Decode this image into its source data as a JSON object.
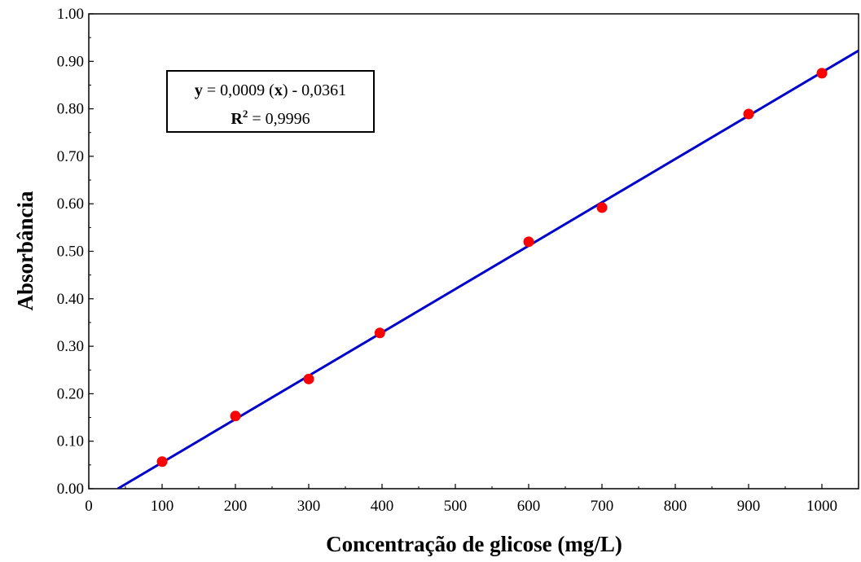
{
  "chart_data": {
    "type": "scatter",
    "xlabel": "Concentração de glicose (mg/L)",
    "ylabel": "Absorbância",
    "xlim": [
      0,
      1050
    ],
    "ylim": [
      0,
      1.0
    ],
    "x_ticks": [
      "0",
      "100",
      "200",
      "300",
      "400",
      "500",
      "600",
      "700",
      "800",
      "900",
      "1000"
    ],
    "y_ticks": [
      "0.00",
      "0.10",
      "0.20",
      "0.30",
      "0.40",
      "0.50",
      "0.60",
      "0.70",
      "0.80",
      "0.90",
      "1.00"
    ],
    "points": [
      {
        "x": 100,
        "y": 0.057
      },
      {
        "x": 200,
        "y": 0.153
      },
      {
        "x": 300,
        "y": 0.231
      },
      {
        "x": 397,
        "y": 0.328
      },
      {
        "x": 600,
        "y": 0.52
      },
      {
        "x": 700,
        "y": 0.592
      },
      {
        "x": 900,
        "y": 0.789
      },
      {
        "x": 1000,
        "y": 0.875
      }
    ],
    "fit": {
      "slope": 0.000913,
      "intercept": -0.0361
    },
    "annotation": {
      "y_symbol": "y",
      "equation_rest": " = 0,0009 (",
      "x_symbol": "x",
      "equation_end": ") - 0,0361",
      "r_symbol": "R",
      "r_power": "2",
      "r_rest": " = 0,9996"
    },
    "colors": {
      "points": "#ff0000",
      "fit_line": "#0000cc",
      "axes": "#000000"
    },
    "grid": false
  }
}
